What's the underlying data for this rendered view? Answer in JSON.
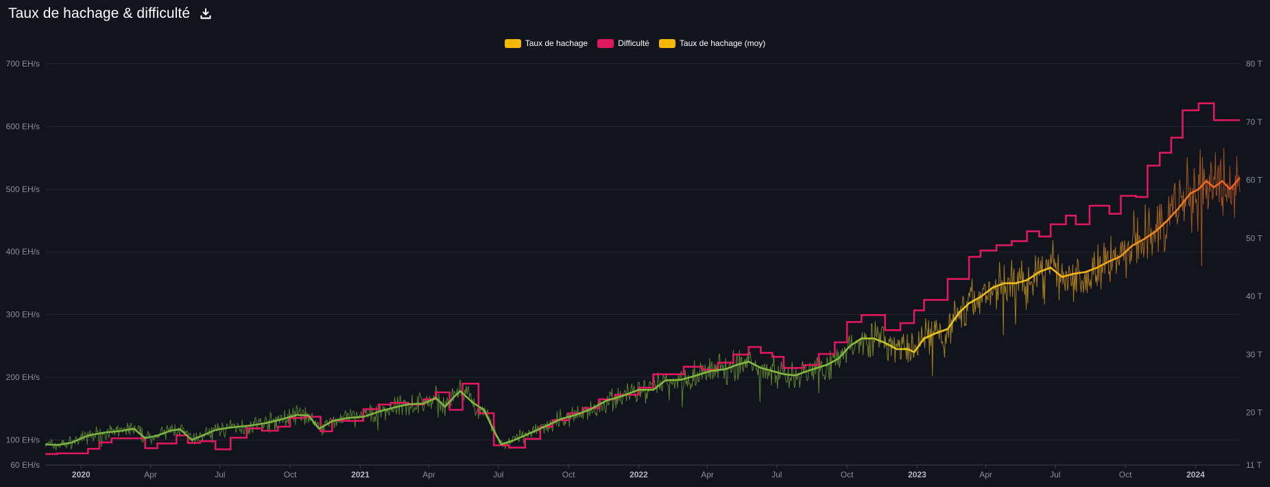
{
  "header": {
    "title": "Taux de hachage & difficulté",
    "download_icon": "download-icon"
  },
  "legend": [
    {
      "label": "Taux de hachage",
      "color": "#f5b700"
    },
    {
      "label": "Difficulté",
      "color": "#e0195f"
    },
    {
      "label": "Taux de hachage (moy)",
      "color": "#f5b700"
    }
  ],
  "chart_data": {
    "type": "line",
    "title": "Taux de hachage & difficulté",
    "grid": true,
    "legend_position": "top-center",
    "x_range": [
      "2019-11-15",
      "2024-02-28"
    ],
    "y_left": {
      "unit": "EH/s",
      "range": [
        60,
        700
      ],
      "ticks": [
        "60 EH/s",
        "100 EH/s",
        "200 EH/s",
        "300 EH/s",
        "400 EH/s",
        "500 EH/s",
        "600 EH/s",
        "700 EH/s"
      ],
      "tick_values": [
        60,
        100,
        200,
        300,
        400,
        500,
        600,
        700
      ]
    },
    "y_right": {
      "unit": "T",
      "range": [
        11,
        80
      ],
      "ticks": [
        "11 T",
        "20 T",
        "30 T",
        "40 T",
        "50 T",
        "60 T",
        "70 T",
        "80 T"
      ],
      "tick_values": [
        11,
        20,
        30,
        40,
        50,
        60,
        70,
        80
      ]
    },
    "x_ticks": [
      {
        "label": "2020",
        "date": "2020-01-01",
        "year": true
      },
      {
        "label": "Apr",
        "date": "2020-04-01",
        "year": false
      },
      {
        "label": "Jul",
        "date": "2020-07-01",
        "year": false
      },
      {
        "label": "Oct",
        "date": "2020-10-01",
        "year": false
      },
      {
        "label": "2021",
        "date": "2021-01-01",
        "year": true
      },
      {
        "label": "Apr",
        "date": "2021-04-01",
        "year": false
      },
      {
        "label": "Jul",
        "date": "2021-07-01",
        "year": false
      },
      {
        "label": "Oct",
        "date": "2021-10-01",
        "year": false
      },
      {
        "label": "2022",
        "date": "2022-01-01",
        "year": true
      },
      {
        "label": "Apr",
        "date": "2022-04-01",
        "year": false
      },
      {
        "label": "Jul",
        "date": "2022-07-01",
        "year": false
      },
      {
        "label": "Oct",
        "date": "2022-10-01",
        "year": false
      },
      {
        "label": "2023",
        "date": "2023-01-01",
        "year": true
      },
      {
        "label": "Apr",
        "date": "2023-04-01",
        "year": false
      },
      {
        "label": "Jul",
        "date": "2023-07-01",
        "year": false
      },
      {
        "label": "Oct",
        "date": "2023-10-01",
        "year": false
      },
      {
        "label": "2024",
        "date": "2024-01-01",
        "year": true
      }
    ],
    "series": [
      {
        "name": "Taux de hachage (moy)",
        "axis": "left",
        "unit": "EH/s",
        "color_low": "#7cb342",
        "color_mid": "#f5c518",
        "color_high": "#f06a1d",
        "points": [
          [
            "2019-11-15",
            93
          ],
          [
            "2019-12-01",
            92
          ],
          [
            "2019-12-20",
            96
          ],
          [
            "2020-01-10",
            107
          ],
          [
            "2020-02-01",
            112
          ],
          [
            "2020-02-20",
            114
          ],
          [
            "2020-03-10",
            118
          ],
          [
            "2020-03-25",
            103
          ],
          [
            "2020-04-10",
            107
          ],
          [
            "2020-04-28",
            115
          ],
          [
            "2020-05-10",
            117
          ],
          [
            "2020-05-25",
            100
          ],
          [
            "2020-06-10",
            108
          ],
          [
            "2020-06-25",
            116
          ],
          [
            "2020-07-15",
            120
          ],
          [
            "2020-08-10",
            123
          ],
          [
            "2020-08-30",
            127
          ],
          [
            "2020-09-20",
            133
          ],
          [
            "2020-10-10",
            140
          ],
          [
            "2020-10-25",
            139
          ],
          [
            "2020-11-08",
            118
          ],
          [
            "2020-11-25",
            130
          ],
          [
            "2020-12-15",
            135
          ],
          [
            "2021-01-05",
            137
          ],
          [
            "2021-01-25",
            145
          ],
          [
            "2021-02-15",
            152
          ],
          [
            "2021-03-05",
            157
          ],
          [
            "2021-03-25",
            158
          ],
          [
            "2021-04-10",
            167
          ],
          [
            "2021-04-22",
            153
          ],
          [
            "2021-05-05",
            170
          ],
          [
            "2021-05-12",
            178
          ],
          [
            "2021-05-28",
            160
          ],
          [
            "2021-06-12",
            148
          ],
          [
            "2021-06-25",
            115
          ],
          [
            "2021-07-05",
            93
          ],
          [
            "2021-07-20",
            99
          ],
          [
            "2021-08-10",
            110
          ],
          [
            "2021-09-01",
            122
          ],
          [
            "2021-09-20",
            133
          ],
          [
            "2021-10-10",
            140
          ],
          [
            "2021-10-30",
            149
          ],
          [
            "2021-11-20",
            163
          ],
          [
            "2021-12-10",
            170
          ],
          [
            "2022-01-01",
            180
          ],
          [
            "2022-01-20",
            180
          ],
          [
            "2022-02-05",
            195
          ],
          [
            "2022-02-25",
            196
          ],
          [
            "2022-03-15",
            202
          ],
          [
            "2022-04-05",
            210
          ],
          [
            "2022-04-25",
            213
          ],
          [
            "2022-05-10",
            220
          ],
          [
            "2022-05-25",
            225
          ],
          [
            "2022-06-10",
            215
          ],
          [
            "2022-06-25",
            210
          ],
          [
            "2022-07-10",
            205
          ],
          [
            "2022-07-25",
            203
          ],
          [
            "2022-08-15",
            212
          ],
          [
            "2022-09-05",
            220
          ],
          [
            "2022-09-20",
            230
          ],
          [
            "2022-10-05",
            250
          ],
          [
            "2022-10-20",
            262
          ],
          [
            "2022-11-05",
            262
          ],
          [
            "2022-11-20",
            255
          ],
          [
            "2022-12-05",
            245
          ],
          [
            "2022-12-20",
            245
          ],
          [
            "2022-12-28",
            240
          ],
          [
            "2023-01-10",
            262
          ],
          [
            "2023-01-25",
            270
          ],
          [
            "2023-02-10",
            277
          ],
          [
            "2023-02-25",
            303
          ],
          [
            "2023-03-10",
            318
          ],
          [
            "2023-03-25",
            328
          ],
          [
            "2023-04-10",
            343
          ],
          [
            "2023-04-25",
            350
          ],
          [
            "2023-05-10",
            350
          ],
          [
            "2023-05-25",
            355
          ],
          [
            "2023-06-10",
            368
          ],
          [
            "2023-06-25",
            375
          ],
          [
            "2023-07-10",
            360
          ],
          [
            "2023-07-25",
            365
          ],
          [
            "2023-08-10",
            368
          ],
          [
            "2023-08-25",
            375
          ],
          [
            "2023-09-10",
            385
          ],
          [
            "2023-09-25",
            393
          ],
          [
            "2023-10-10",
            410
          ],
          [
            "2023-10-25",
            420
          ],
          [
            "2023-11-10",
            433
          ],
          [
            "2023-11-25",
            450
          ],
          [
            "2023-12-10",
            470
          ],
          [
            "2023-12-25",
            493
          ],
          [
            "2024-01-05",
            500
          ],
          [
            "2024-01-15",
            513
          ],
          [
            "2024-01-25",
            503
          ],
          [
            "2024-02-05",
            513
          ],
          [
            "2024-02-15",
            500
          ],
          [
            "2024-02-28",
            518
          ]
        ]
      },
      {
        "name": "Difficulté",
        "axis": "right",
        "unit": "T",
        "color": "#e0195f",
        "steps": [
          [
            "2019-11-15",
            12.9
          ],
          [
            "2019-12-01",
            13.0
          ],
          [
            "2020-01-10",
            13.8
          ],
          [
            "2020-01-25",
            14.9
          ],
          [
            "2020-02-10",
            15.6
          ],
          [
            "2020-03-12",
            15.6
          ],
          [
            "2020-03-25",
            13.9
          ],
          [
            "2020-04-10",
            14.7
          ],
          [
            "2020-05-05",
            16.1
          ],
          [
            "2020-05-20",
            14.8
          ],
          [
            "2020-06-05",
            15.1
          ],
          [
            "2020-06-25",
            13.7
          ],
          [
            "2020-07-15",
            15.7
          ],
          [
            "2020-08-05",
            17.3
          ],
          [
            "2020-08-25",
            16.9
          ],
          [
            "2020-09-15",
            17.6
          ],
          [
            "2020-10-01",
            19.1
          ],
          [
            "2020-10-20",
            19.3
          ],
          [
            "2020-11-10",
            16.8
          ],
          [
            "2020-11-25",
            18.7
          ],
          [
            "2020-12-10",
            18.6
          ],
          [
            "2021-01-05",
            20.6
          ],
          [
            "2021-01-25",
            21.4
          ],
          [
            "2021-02-10",
            21.7
          ],
          [
            "2021-03-05",
            21.4
          ],
          [
            "2021-03-25",
            22.3
          ],
          [
            "2021-04-10",
            23.5
          ],
          [
            "2021-04-28",
            20.5
          ],
          [
            "2021-05-15",
            25.0
          ],
          [
            "2021-06-05",
            19.9
          ],
          [
            "2021-06-25",
            14.4
          ],
          [
            "2021-07-15",
            14.0
          ],
          [
            "2021-08-05",
            15.5
          ],
          [
            "2021-08-25",
            17.6
          ],
          [
            "2021-09-10",
            18.7
          ],
          [
            "2021-10-01",
            19.9
          ],
          [
            "2021-10-20",
            20.8
          ],
          [
            "2021-11-10",
            22.3
          ],
          [
            "2021-12-01",
            23.1
          ],
          [
            "2022-01-01",
            24.3
          ],
          [
            "2022-01-20",
            26.6
          ],
          [
            "2022-02-10",
            26.6
          ],
          [
            "2022-03-01",
            27.9
          ],
          [
            "2022-03-25",
            27.4
          ],
          [
            "2022-04-15",
            28.6
          ],
          [
            "2022-05-05",
            30.0
          ],
          [
            "2022-05-25",
            31.3
          ],
          [
            "2022-06-10",
            30.3
          ],
          [
            "2022-06-25",
            29.6
          ],
          [
            "2022-07-10",
            27.7
          ],
          [
            "2022-08-05",
            28.2
          ],
          [
            "2022-08-25",
            30.1
          ],
          [
            "2022-09-15",
            32.1
          ],
          [
            "2022-10-01",
            35.6
          ],
          [
            "2022-10-20",
            36.8
          ],
          [
            "2022-11-05",
            36.8
          ],
          [
            "2022-11-20",
            34.2
          ],
          [
            "2022-12-10",
            35.4
          ],
          [
            "2022-12-28",
            37.6
          ],
          [
            "2023-01-10",
            39.4
          ],
          [
            "2023-01-28",
            39.4
          ],
          [
            "2023-02-10",
            43.0
          ],
          [
            "2023-03-10",
            46.8
          ],
          [
            "2023-03-25",
            47.9
          ],
          [
            "2023-04-15",
            48.8
          ],
          [
            "2023-05-05",
            49.5
          ],
          [
            "2023-05-25",
            51.2
          ],
          [
            "2023-06-10",
            50.3
          ],
          [
            "2023-06-25",
            52.4
          ],
          [
            "2023-07-15",
            53.9
          ],
          [
            "2023-07-28",
            52.4
          ],
          [
            "2023-08-15",
            55.6
          ],
          [
            "2023-09-10",
            54.2
          ],
          [
            "2023-09-25",
            57.3
          ],
          [
            "2023-10-15",
            57.1
          ],
          [
            "2023-10-30",
            62.5
          ],
          [
            "2023-11-15",
            64.7
          ],
          [
            "2023-11-30",
            67.3
          ],
          [
            "2023-12-15",
            72.0
          ],
          [
            "2024-01-05",
            73.2
          ],
          [
            "2024-01-25",
            70.3
          ],
          [
            "2024-02-28",
            70.3
          ]
        ]
      },
      {
        "name": "Taux de hachage",
        "axis": "left",
        "unit": "EH/s",
        "description_of_noise_band_px_free": "daily values scatter around the moving average"
      }
    ]
  }
}
